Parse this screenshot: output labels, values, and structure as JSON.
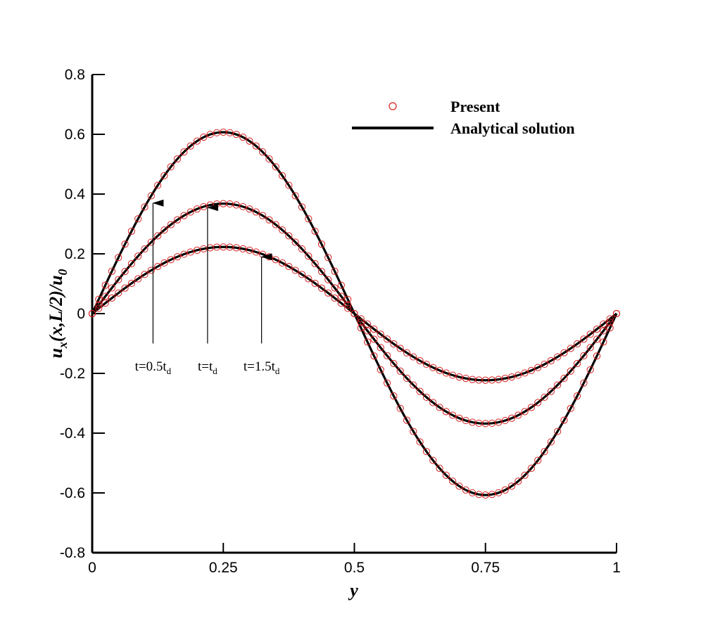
{
  "chart_data": {
    "type": "line",
    "title": "",
    "xlabel": "y",
    "ylabel": {
      "main": "u",
      "sub1": "x",
      "mid": "(x,L/2)/u",
      "sub2": "0"
    },
    "xlim": [
      0,
      1
    ],
    "ylim": [
      -0.8,
      0.8
    ],
    "xticks": [
      0,
      0.25,
      0.5,
      0.75,
      1
    ],
    "xtick_labels": [
      "0",
      "0.25",
      "0.5",
      "0.75",
      "1"
    ],
    "yticks": [
      -0.8,
      -0.6,
      -0.4,
      -0.2,
      0,
      0.2,
      0.4,
      0.6,
      0.8
    ],
    "ytick_labels": [
      "-0.8",
      "-0.6",
      "-0.4",
      "-0.2",
      "0",
      "0.2",
      "0.4",
      "0.6",
      "0.8"
    ],
    "grid": false,
    "legend": {
      "position": "top-right",
      "entries": [
        {
          "label": "Present",
          "style": "markers",
          "marker": "open-circle",
          "color": "#d62020"
        },
        {
          "label": "Analytical solution",
          "style": "line",
          "color": "#000000"
        }
      ]
    },
    "series_formula": "amplitude * sin(2*pi*y)",
    "points_per_series": 81,
    "series": [
      {
        "name": "t=0.5t_d",
        "amplitude": 0.607,
        "analytical_color": "#000000",
        "present_color": "#d62020"
      },
      {
        "name": "t=t_d",
        "amplitude": 0.368,
        "analytical_color": "#000000",
        "present_color": "#d62020"
      },
      {
        "name": "t=1.5t_d",
        "amplitude": 0.223,
        "analytical_color": "#000000",
        "present_color": "#d62020"
      }
    ],
    "annotations": [
      {
        "text_main": "t=0.5t",
        "text_sub": "d",
        "arrow_from": [
          0.116,
          -0.1
        ],
        "arrow_to": [
          0.116,
          0.37
        ]
      },
      {
        "text_main": "t=t",
        "text_sub": "d",
        "arrow_from": [
          0.22,
          -0.1
        ],
        "arrow_to": [
          0.22,
          0.355
        ]
      },
      {
        "text_main": "t=1.5t",
        "text_sub": "d",
        "arrow_from": [
          0.323,
          -0.1
        ],
        "arrow_to": [
          0.323,
          0.19
        ]
      }
    ]
  }
}
